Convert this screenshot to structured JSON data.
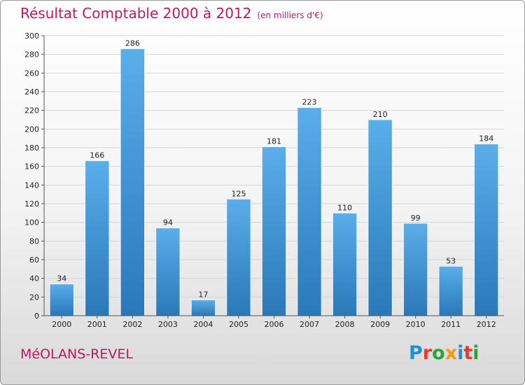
{
  "header": {
    "title": "Résultat Comptable 2000 à 2012",
    "subtitle": "(en milliers d'€)"
  },
  "footer": {
    "town": "MéOLANS-REVEL",
    "logo": {
      "text": "Proxiti",
      "letter_colors": [
        "#1f8fd6",
        "#e53a2b",
        "#2aa33a",
        "#f39a14",
        "#1f8fd6",
        "#e53a2b",
        "#2aa33a"
      ]
    }
  },
  "colors": {
    "accent": "#c0185c",
    "bar_top": "#5aaeea",
    "bar_bottom": "#2a78b8",
    "grid": "#d6d6d6"
  },
  "chart_data": {
    "type": "bar",
    "categories": [
      "2000",
      "2001",
      "2002",
      "2003",
      "2004",
      "2005",
      "2006",
      "2007",
      "2008",
      "2009",
      "2010",
      "2011",
      "2012"
    ],
    "values": [
      34,
      166,
      286,
      94,
      17,
      125,
      181,
      223,
      110,
      210,
      99,
      53,
      184
    ],
    "ylim": [
      0,
      300
    ],
    "yticks": [
      0,
      20,
      40,
      60,
      80,
      100,
      120,
      140,
      160,
      180,
      200,
      220,
      240,
      260,
      280,
      300
    ],
    "grid": true
  }
}
